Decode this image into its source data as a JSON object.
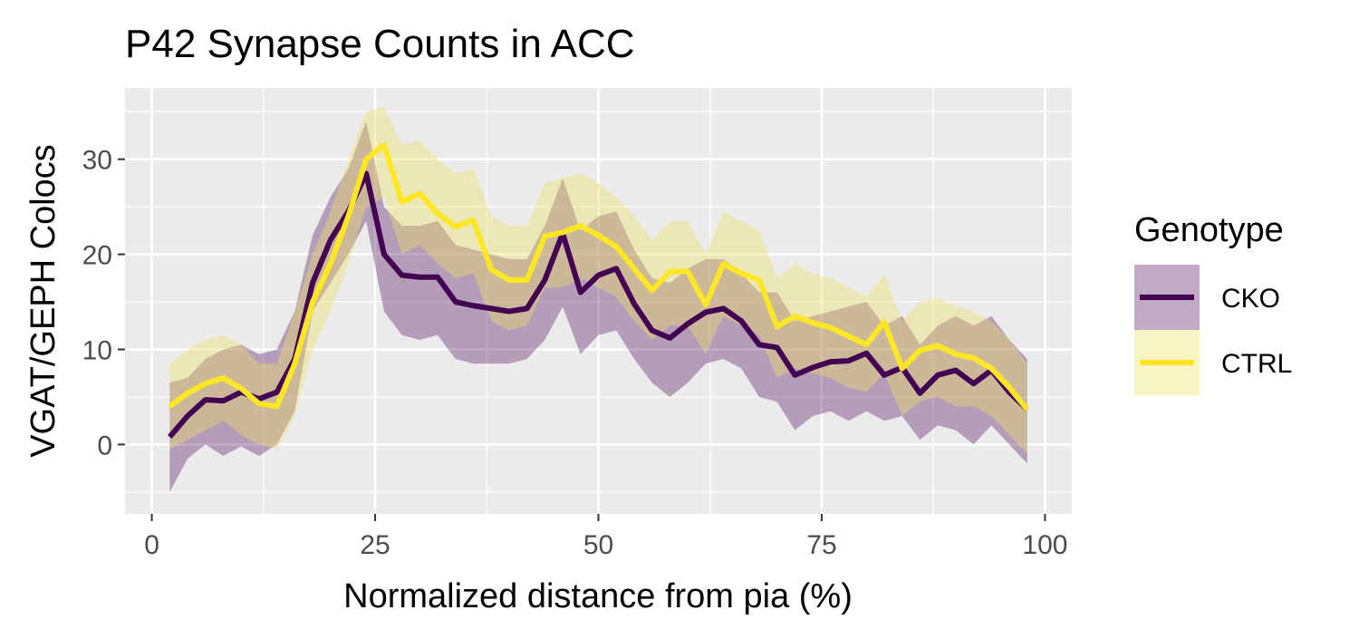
{
  "chart_data": {
    "type": "line",
    "title": "P42 Synapse Counts in ACC",
    "xlabel": "Normalized distance from pia (%)",
    "ylabel": "VGAT/GEPH Colocs",
    "xlim": [
      -3,
      103
    ],
    "ylim": [
      -7.3,
      37.5
    ],
    "x_ticks": [
      0,
      25,
      50,
      75,
      100
    ],
    "y_ticks": [
      0,
      10,
      20,
      30
    ],
    "grid": true,
    "legend": {
      "title": "Genotype",
      "placement": "right"
    },
    "series": [
      {
        "name": "CKO",
        "color": "#440154",
        "fill_color": "#440154",
        "fill_opacity": 0.33,
        "x": [
          2,
          4,
          6,
          8,
          10,
          12,
          14,
          16,
          18,
          20,
          22,
          24,
          26,
          28,
          30,
          32,
          34,
          36,
          38,
          40,
          42,
          44,
          46,
          48,
          50,
          52,
          54,
          56,
          58,
          60,
          62,
          64,
          66,
          68,
          70,
          72,
          74,
          76,
          78,
          80,
          82,
          84,
          86,
          88,
          90,
          92,
          94,
          96,
          98
        ],
        "y": [
          0.8,
          3.0,
          4.7,
          4.6,
          5.5,
          4.8,
          5.5,
          9.0,
          17.0,
          21.5,
          24.5,
          28.5,
          20.0,
          17.8,
          17.6,
          17.6,
          15.0,
          14.6,
          14.3,
          14.0,
          14.3,
          17.3,
          22.2,
          16.0,
          17.8,
          18.5,
          14.8,
          12.0,
          11.2,
          12.7,
          13.9,
          14.3,
          13.0,
          10.5,
          10.2,
          7.3,
          8.1,
          8.7,
          8.8,
          9.6,
          7.3,
          8.1,
          5.4,
          7.3,
          7.8,
          6.4,
          7.8,
          5.5,
          3.7
        ],
        "lower": [
          -5.0,
          -1.5,
          0.0,
          -1.2,
          -0.2,
          -1.2,
          0.0,
          3.5,
          14.0,
          17.0,
          20.0,
          23.5,
          14.0,
          11.5,
          11.0,
          11.5,
          9.0,
          8.5,
          8.5,
          8.5,
          9.0,
          11.0,
          14.5,
          9.5,
          11.5,
          12.0,
          9.0,
          6.5,
          5.0,
          6.5,
          8.5,
          9.0,
          8.0,
          5.0,
          4.5,
          1.5,
          3.0,
          3.5,
          2.5,
          3.5,
          2.5,
          3.0,
          0.5,
          2.0,
          1.5,
          0.0,
          2.0,
          0.0,
          -2.0
        ],
        "upper": [
          6.5,
          7.0,
          9.0,
          10.0,
          10.5,
          9.5,
          10.0,
          14.0,
          22.0,
          26.0,
          29.0,
          34.0,
          25.0,
          23.0,
          23.0,
          23.5,
          21.0,
          20.5,
          20.0,
          19.5,
          19.5,
          23.0,
          28.0,
          22.5,
          24.0,
          24.5,
          20.5,
          17.5,
          17.0,
          18.5,
          19.5,
          19.5,
          18.0,
          16.0,
          16.0,
          13.0,
          13.5,
          14.0,
          14.5,
          15.0,
          12.5,
          13.5,
          10.5,
          12.5,
          13.5,
          12.5,
          13.5,
          11.0,
          9.0
        ]
      },
      {
        "name": "CTRL",
        "color": "#FDE725",
        "fill_color": "#EEE066",
        "fill_opacity": 0.4,
        "x": [
          2,
          4,
          6,
          8,
          10,
          12,
          14,
          16,
          18,
          20,
          22,
          24,
          26,
          28,
          30,
          32,
          34,
          36,
          38,
          40,
          42,
          44,
          46,
          48,
          50,
          52,
          54,
          56,
          58,
          60,
          62,
          64,
          66,
          68,
          70,
          72,
          74,
          76,
          78,
          80,
          82,
          84,
          86,
          88,
          90,
          92,
          94,
          96,
          98
        ],
        "y": [
          4.0,
          5.4,
          6.4,
          7.0,
          5.9,
          4.3,
          4.0,
          8.5,
          15.0,
          19.0,
          24.0,
          30.0,
          31.5,
          25.5,
          26.4,
          24.3,
          22.9,
          23.6,
          18.4,
          17.3,
          17.3,
          21.9,
          22.3,
          23.0,
          22.0,
          20.8,
          18.5,
          16.2,
          18.2,
          18.2,
          14.7,
          19.0,
          18.0,
          17.3,
          12.4,
          13.5,
          12.8,
          12.3,
          11.4,
          10.5,
          12.9,
          8.0,
          9.9,
          10.4,
          9.5,
          9.1,
          8.0,
          6.0,
          3.7
        ],
        "lower": [
          -0.5,
          0.5,
          1.5,
          2.5,
          1.0,
          0.0,
          -0.5,
          3.0,
          10.0,
          14.0,
          19.0,
          25.0,
          26.0,
          20.0,
          21.0,
          19.0,
          17.5,
          18.0,
          13.0,
          12.0,
          12.5,
          16.5,
          16.5,
          17.5,
          16.5,
          15.5,
          13.0,
          11.0,
          12.5,
          12.5,
          9.5,
          13.5,
          12.5,
          11.5,
          7.0,
          8.0,
          7.5,
          7.0,
          6.0,
          5.5,
          7.5,
          3.0,
          4.5,
          5.0,
          4.0,
          4.0,
          3.0,
          1.0,
          -1.0
        ],
        "upper": [
          8.5,
          10.0,
          11.0,
          11.5,
          10.5,
          8.5,
          8.5,
          14.0,
          20.0,
          24.5,
          30.0,
          35.0,
          35.5,
          31.5,
          32.0,
          30.0,
          28.5,
          29.0,
          24.0,
          23.0,
          23.0,
          27.5,
          28.0,
          28.5,
          27.5,
          26.0,
          24.0,
          21.5,
          23.5,
          23.5,
          20.0,
          24.5,
          23.5,
          22.5,
          17.5,
          19.0,
          18.0,
          17.5,
          16.5,
          15.5,
          18.0,
          13.0,
          15.0,
          15.5,
          14.5,
          14.0,
          13.0,
          11.0,
          8.5
        ]
      }
    ]
  }
}
